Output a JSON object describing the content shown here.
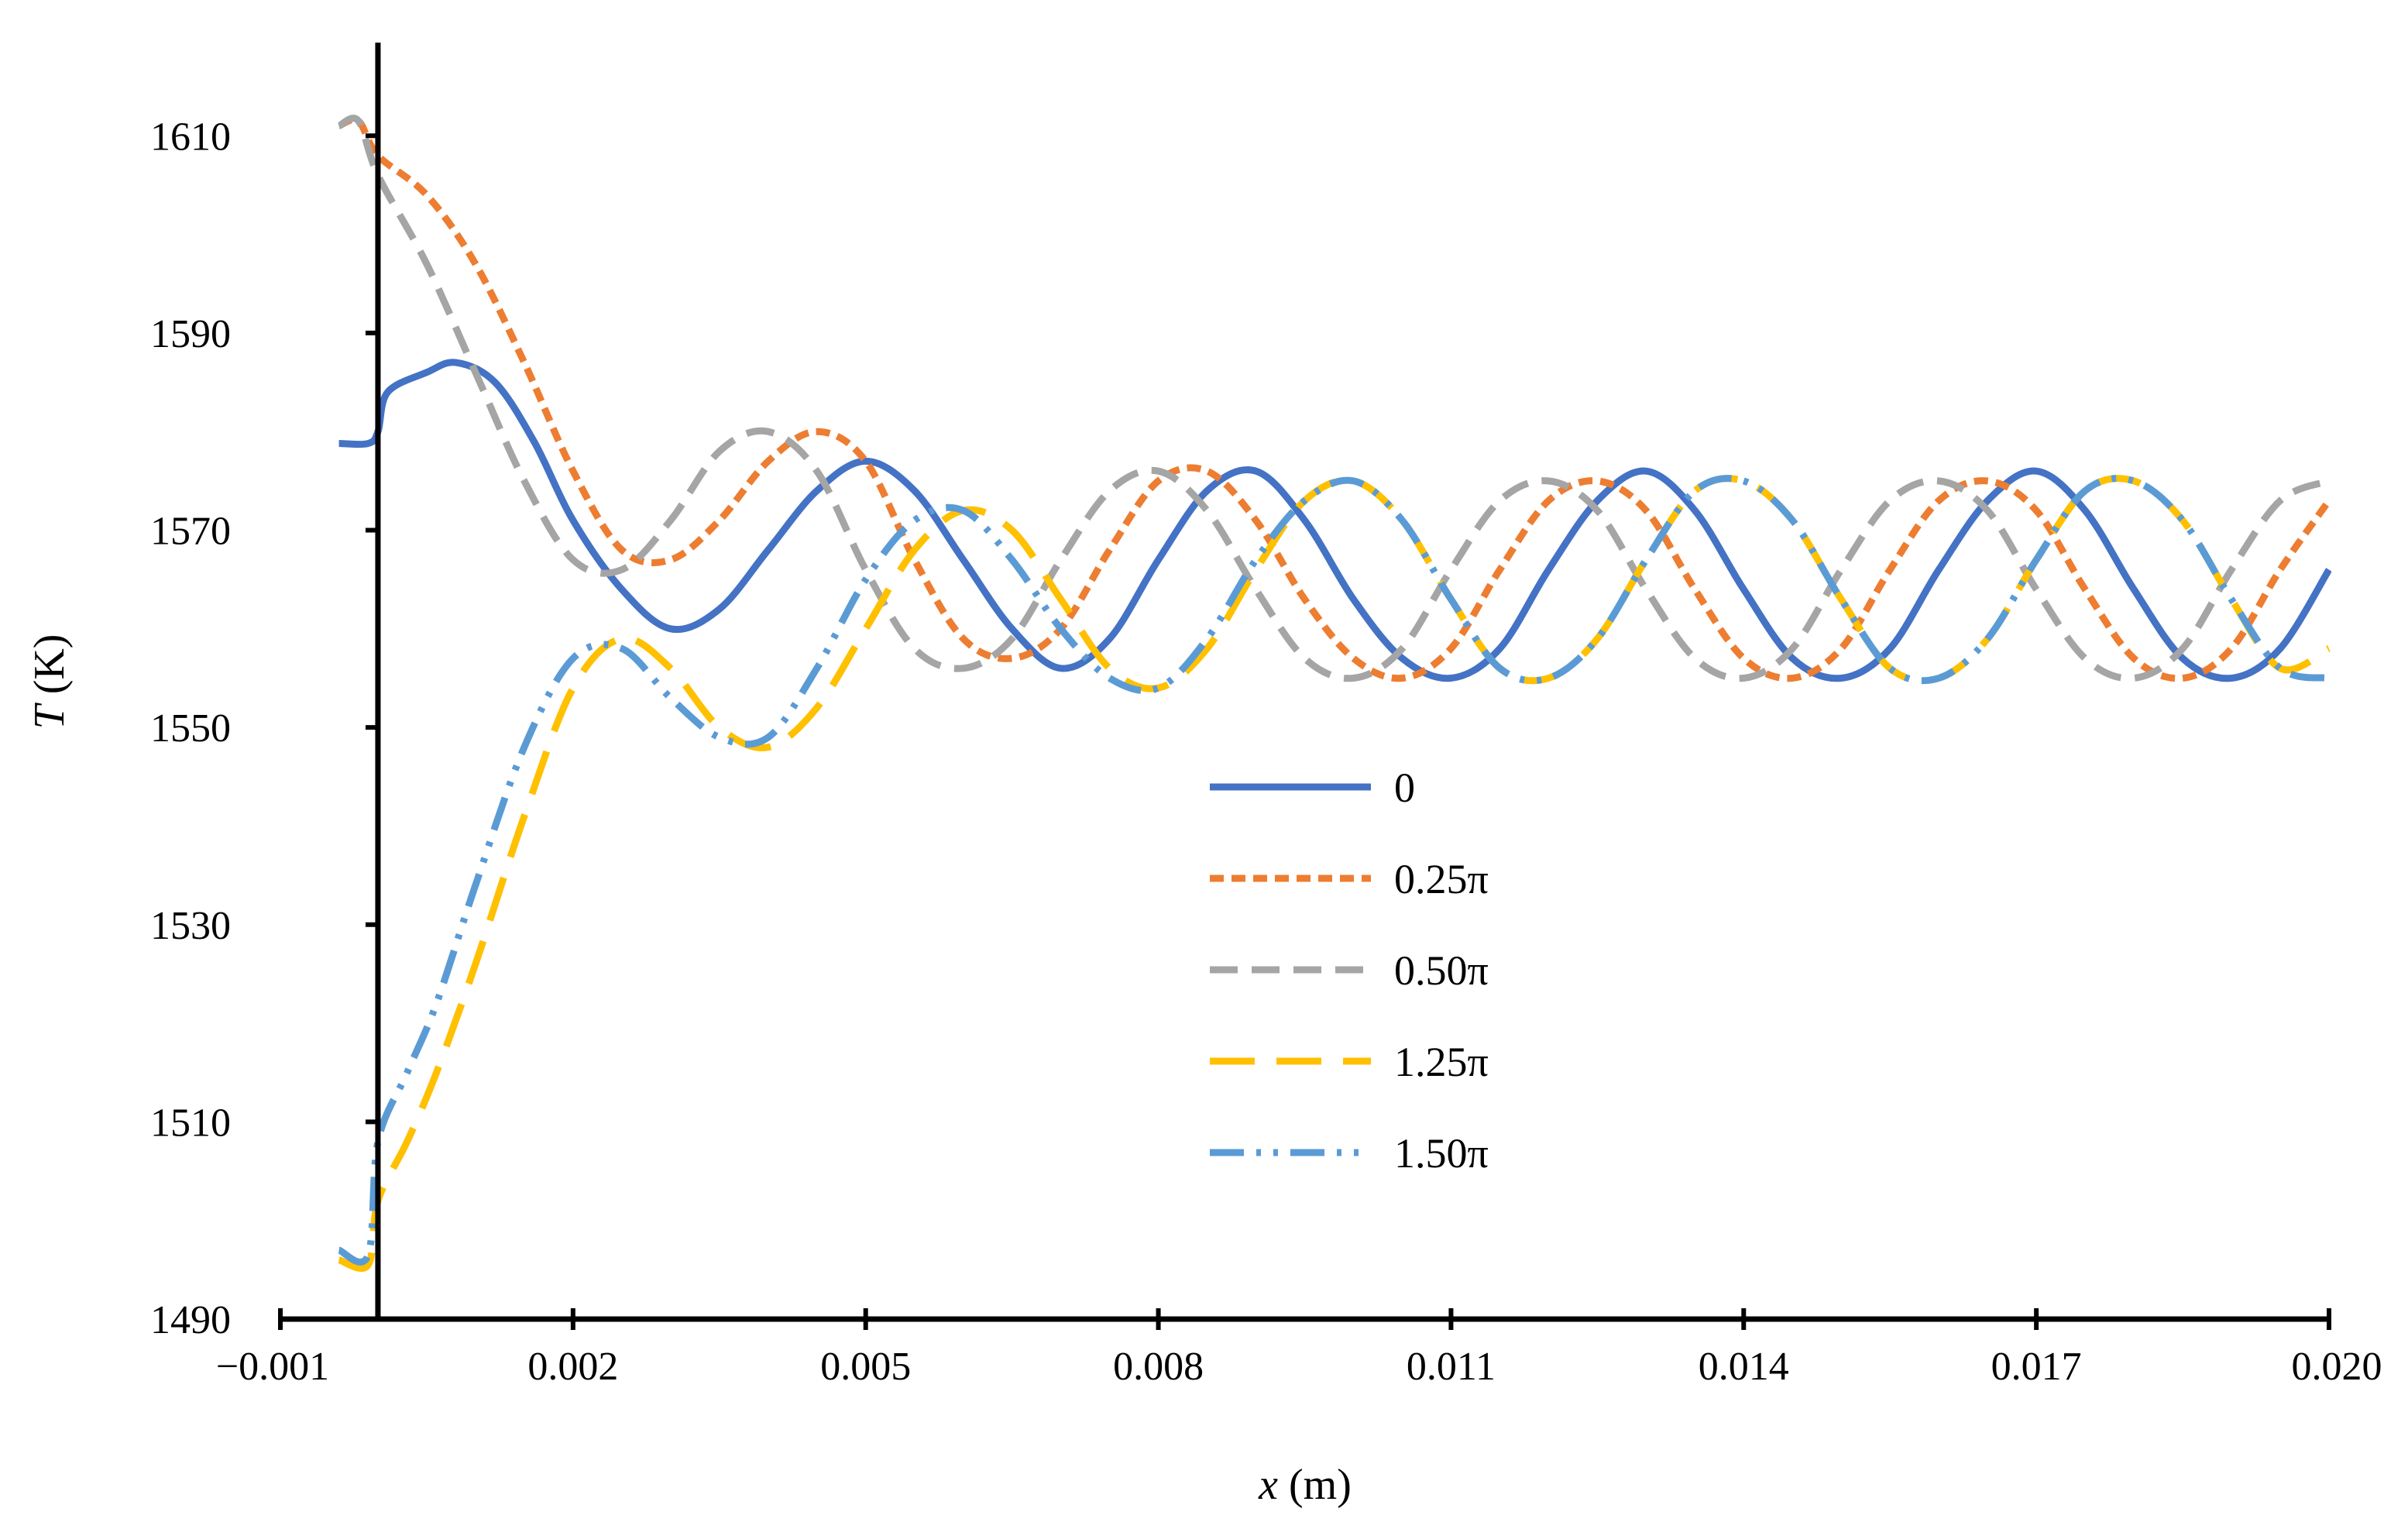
{
  "chart_data": {
    "type": "line",
    "title": "",
    "xlabel": {
      "var": "x",
      "unit": " (m)"
    },
    "ylabel": {
      "var": "T",
      "unit": " (K)"
    },
    "xlim": [
      -0.001,
      0.02
    ],
    "ylim": [
      1490,
      1620
    ],
    "xticks": [
      -0.001,
      0.002,
      0.005,
      0.008,
      0.011,
      0.014,
      0.017,
      0.02
    ],
    "xtick_labels": [
      "−0.001",
      "0.002",
      "0.005",
      "0.008",
      "0.011",
      "0.014",
      "0.017",
      "0.020"
    ],
    "yticks": [
      1490,
      1510,
      1530,
      1550,
      1570,
      1590,
      1610
    ],
    "ytick_labels": [
      "1490",
      "1510",
      "1530",
      "1550",
      "1570",
      "1590",
      "1610"
    ],
    "y_axis_at_x": 0,
    "legend_position": "center",
    "series": [
      {
        "name": "0",
        "color": "#4472C4",
        "dash": "solid",
        "x": [
          -0.0004,
          -0.0001,
          0.0,
          0.0001,
          0.0005,
          0.0008,
          0.0012,
          0.0016,
          0.002,
          0.0025,
          0.003,
          0.0035,
          0.004,
          0.0045,
          0.005,
          0.0055,
          0.006,
          0.0065,
          0.007,
          0.0075,
          0.008,
          0.0085,
          0.009,
          0.0095,
          0.01,
          0.0105,
          0.011,
          0.0115,
          0.012,
          0.0125,
          0.013,
          0.0135,
          0.014,
          0.0145,
          0.015,
          0.0155,
          0.016,
          0.0165,
          0.017,
          0.0175,
          0.018,
          0.0185,
          0.019,
          0.0195,
          0.02
        ],
        "y": [
          1578.8,
          1578.8,
          1580,
          1584,
          1586,
          1587,
          1585,
          1579,
          1571,
          1564,
          1560,
          1562,
          1568,
          1574,
          1577,
          1574,
          1567,
          1560,
          1556,
          1559,
          1567,
          1574,
          1576,
          1571,
          1563,
          1557,
          1555,
          1558,
          1566,
          1573,
          1576,
          1572,
          1564,
          1557,
          1555,
          1558,
          1566,
          1573,
          1576,
          1572,
          1564,
          1557,
          1555,
          1558,
          1566
        ]
      },
      {
        "name": "0.25π",
        "color": "#ED7D31",
        "dash": "short",
        "x": [
          -0.0004,
          -0.0002,
          0.0,
          0.0005,
          0.001,
          0.0015,
          0.002,
          0.0025,
          0.003,
          0.0035,
          0.004,
          0.0045,
          0.005,
          0.0055,
          0.006,
          0.0065,
          0.007,
          0.0075,
          0.008,
          0.0085,
          0.009,
          0.0095,
          0.01,
          0.0105,
          0.011,
          0.0115,
          0.012,
          0.0125,
          0.013,
          0.0135,
          0.014,
          0.0145,
          0.015,
          0.0155,
          0.016,
          0.0165,
          0.017,
          0.0175,
          0.018,
          0.0185,
          0.019,
          0.0195,
          0.02
        ],
        "y": [
          1611,
          1611.5,
          1608,
          1604,
          1597,
          1587,
          1576,
          1568,
          1567,
          1571,
          1577,
          1580,
          1577,
          1567,
          1559,
          1557,
          1560,
          1568,
          1575,
          1576,
          1571,
          1563,
          1557,
          1555,
          1558,
          1566,
          1573,
          1575,
          1572,
          1564,
          1557,
          1555,
          1558,
          1566,
          1573,
          1575,
          1572,
          1564,
          1557,
          1555,
          1558,
          1566,
          1573
        ]
      },
      {
        "name": "0.50π",
        "color": "#A5A5A5",
        "dash": "medium",
        "x": [
          -0.0004,
          -0.0002,
          0.0,
          0.0005,
          0.001,
          0.0015,
          0.002,
          0.0025,
          0.003,
          0.0035,
          0.004,
          0.0045,
          0.005,
          0.0055,
          0.006,
          0.0065,
          0.007,
          0.0075,
          0.008,
          0.0085,
          0.009,
          0.0095,
          0.01,
          0.0105,
          0.011,
          0.0115,
          0.012,
          0.0125,
          0.013,
          0.0135,
          0.014,
          0.0145,
          0.015,
          0.0155,
          0.016,
          0.0165,
          0.017,
          0.0175,
          0.018,
          0.0185,
          0.019,
          0.0195,
          0.02
        ],
        "y": [
          1611,
          1611.5,
          1606,
          1597,
          1586,
          1575,
          1567,
          1566,
          1571,
          1578,
          1580,
          1576,
          1566,
          1558,
          1556,
          1559,
          1567,
          1574,
          1576,
          1572,
          1564,
          1557,
          1555,
          1558,
          1566,
          1573,
          1575,
          1572,
          1564,
          1557,
          1555,
          1558,
          1566,
          1573,
          1575,
          1572,
          1564,
          1557,
          1555,
          1558,
          1566,
          1573,
          1575
        ]
      },
      {
        "name": "1.25π",
        "color": "#FFC000",
        "dash": "long",
        "x": [
          -0.0004,
          -0.0001,
          0.0,
          0.0003,
          0.0006,
          0.001,
          0.0015,
          0.002,
          0.0025,
          0.003,
          0.0035,
          0.004,
          0.0045,
          0.005,
          0.0055,
          0.006,
          0.0065,
          0.007,
          0.0075,
          0.008,
          0.0085,
          0.009,
          0.0095,
          0.01,
          0.0105,
          0.011,
          0.0115,
          0.012,
          0.0125,
          0.013,
          0.0135,
          0.014,
          0.0145,
          0.015,
          0.0155,
          0.016,
          0.0165,
          0.017,
          0.0175,
          0.018,
          0.0185,
          0.019,
          0.0195,
          0.02
        ],
        "y": [
          1496,
          1495.5,
          1502,
          1508,
          1515,
          1526,
          1541,
          1554,
          1559,
          1556,
          1550,
          1548,
          1552,
          1560,
          1568,
          1572,
          1570,
          1563,
          1556,
          1554,
          1558,
          1566,
          1573,
          1575,
          1571,
          1563,
          1556,
          1555,
          1559,
          1567,
          1574,
          1575,
          1571,
          1563,
          1556,
          1555,
          1559,
          1567,
          1574,
          1575,
          1571,
          1563,
          1556,
          1558
        ]
      },
      {
        "name": "1.50π",
        "color": "#5B9BD5",
        "dash": "dashdotdot",
        "x": [
          -0.0004,
          -0.0001,
          0.0,
          0.0003,
          0.0006,
          0.001,
          0.0015,
          0.002,
          0.0025,
          0.003,
          0.0035,
          0.004,
          0.0045,
          0.005,
          0.0055,
          0.006,
          0.0065,
          0.007,
          0.0075,
          0.008,
          0.0085,
          0.009,
          0.0095,
          0.01,
          0.0105,
          0.011,
          0.0115,
          0.012,
          0.0125,
          0.013,
          0.0135,
          0.014,
          0.0145,
          0.015,
          0.0155,
          0.016,
          0.0165,
          0.017,
          0.0175,
          0.018,
          0.0185,
          0.019,
          0.0195,
          0.02
        ],
        "y": [
          1497,
          1496.5,
          1508,
          1515,
          1522,
          1534,
          1548,
          1557,
          1558,
          1553,
          1549,
          1549,
          1556,
          1565,
          1571,
          1572,
          1567,
          1560,
          1555,
          1554,
          1559,
          1567,
          1573,
          1575,
          1571,
          1563,
          1556,
          1555,
          1559,
          1567,
          1574,
          1575,
          1571,
          1563,
          1556,
          1555,
          1559,
          1567,
          1574,
          1575,
          1571,
          1563,
          1556,
          1555
        ]
      }
    ]
  }
}
